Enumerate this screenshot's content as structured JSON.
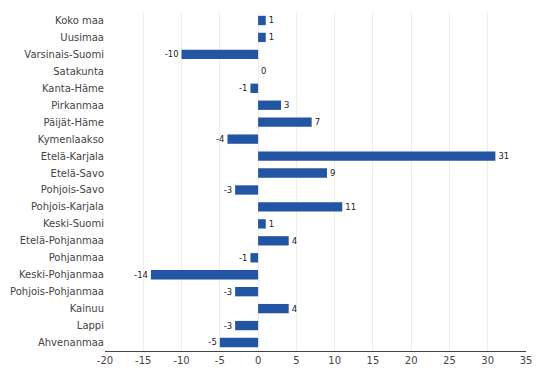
{
  "chart_data": {
    "type": "bar",
    "orientation": "horizontal",
    "categories": [
      "Ahvenanmaa",
      "Lappi",
      "Kainuu",
      "Pohjois-Pohjanmaa",
      "Keski-Pohjanmaa",
      "Pohjanmaa",
      "Etelä-Pohjanmaa",
      "Keski-Suomi",
      "Pohjois-Karjala",
      "Pohjois-Savo",
      "Etelä-Savo",
      "Etelä-Karjala",
      "Kymenlaakso",
      "Päijät-Häme",
      "Pirkanmaa",
      "Kanta-Häme",
      "Satakunta",
      "Varsinais-Suomi",
      "Uusimaa",
      "Koko maa"
    ],
    "values": [
      -5,
      -3,
      4,
      -3,
      -14,
      -1,
      4,
      1,
      11,
      -3,
      9,
      31,
      -4,
      7,
      3,
      -1,
      0,
      -10,
      1,
      1
    ],
    "color": "#2255A4",
    "xlim": [
      -20,
      35
    ],
    "xticks": [
      -20,
      -15,
      -10,
      -5,
      0,
      5,
      10,
      15,
      20,
      25,
      30,
      35
    ],
    "grid": true,
    "data_labels": true
  }
}
